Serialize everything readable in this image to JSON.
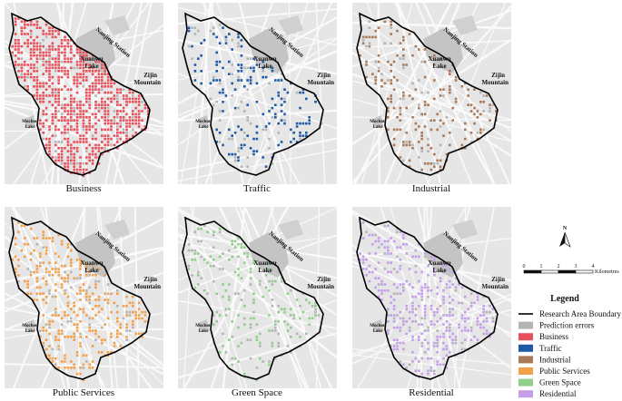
{
  "panels": [
    {
      "label": "Business"
    },
    {
      "label": "Traffic"
    },
    {
      "label": "Industrial"
    },
    {
      "label": "Public Services"
    },
    {
      "label": "Green Space"
    },
    {
      "label": "Residential"
    }
  ],
  "map_labels": {
    "station": "Nanjing Station",
    "xuanwu": [
      "Xuanwu",
      "Lake"
    ],
    "zijin": [
      "Zijin",
      "Mountain"
    ],
    "mochou": [
      "Mochou",
      "Lake"
    ]
  },
  "north_arrow": "N",
  "scale_bar": {
    "ticks": [
      0,
      1,
      2,
      3,
      4
    ],
    "unit": "Kilometres"
  },
  "legend": {
    "title": "Legend",
    "items": [
      {
        "label": "Research Area Boundary",
        "color": "#000000",
        "kind": "line"
      },
      {
        "label": "Prediction errors",
        "color": "#b4b4b4",
        "kind": "box"
      },
      {
        "label": "Business",
        "color": "#e8505b",
        "kind": "box"
      },
      {
        "label": "Traffic",
        "color": "#1f5aa6",
        "kind": "box"
      },
      {
        "label": "Industrial",
        "color": "#a87a5a",
        "kind": "box"
      },
      {
        "label": "Public Services",
        "color": "#f2a14a",
        "kind": "box"
      },
      {
        "label": "Green Space",
        "color": "#8fcf8a",
        "kind": "box"
      },
      {
        "label": "Residential",
        "color": "#c49ee8",
        "kind": "box"
      }
    ]
  }
}
